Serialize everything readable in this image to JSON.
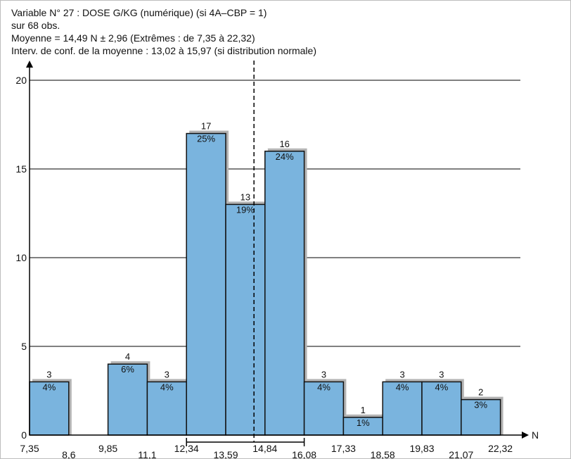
{
  "header": {
    "line1": "Variable N° 27 : DOSE G/KG (numérique) (si 4A–CBP = 1)",
    "line2": "sur 68 obs.",
    "line3": "Moyenne = 14,49 N ± 2,96 (Extrêmes : de 7,35 à 22,32)",
    "line4": "Interv. de conf. de la moyenne : 13,02 à 15,97 (si distribution normale)"
  },
  "colors": {
    "bar_fill": "#7ab4de",
    "bar_stroke": "#111111",
    "bar_shadow": "#b3b3b3",
    "gridline": "#000000"
  },
  "chart_data": {
    "type": "bar",
    "histogram": true,
    "bin_edges": [
      7.35,
      8.6,
      9.85,
      11.1,
      12.34,
      13.59,
      14.84,
      16.08,
      17.33,
      18.58,
      19.83,
      21.07,
      22.32
    ],
    "bin_edge_labels": [
      "7,35",
      "8,6",
      "9,85",
      "11,1",
      "12,34",
      "13,59",
      "14,84",
      "16,08",
      "17,33",
      "18,58",
      "19,83",
      "21,07",
      "22,32"
    ],
    "counts": [
      3,
      0,
      4,
      3,
      17,
      13,
      16,
      3,
      1,
      3,
      3,
      2
    ],
    "percent_labels": [
      "4%",
      "",
      "6%",
      "4%",
      "25%",
      "19%",
      "24%",
      "4%",
      "1%",
      "4%",
      "4%",
      "3%"
    ],
    "ylim": [
      0,
      20
    ],
    "yticks": [
      0,
      5,
      10,
      15,
      20
    ],
    "xlabel": "N",
    "grid": true,
    "mean": 14.49,
    "std_interval": [
      12.34,
      16.08
    ]
  }
}
